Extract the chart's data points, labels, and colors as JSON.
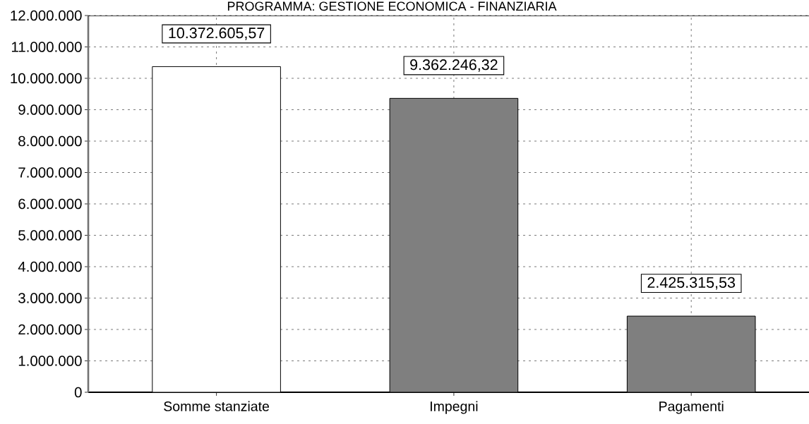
{
  "chart_data": {
    "type": "bar",
    "title": "PROGRAMMA: GESTIONE ECONOMICA - FINANZIARIA",
    "categories": [
      "Somme stanziate",
      "Impegni",
      "Pagamenti"
    ],
    "values": [
      10372605.57,
      9362246.32,
      2425315.53
    ],
    "colors": [
      "#ffffff",
      "#7f7f7f",
      "#7f7f7f"
    ],
    "value_labels": [
      "10.372.605,57",
      "9.362.246,32",
      "2.425.315,53"
    ],
    "ylim": [
      0,
      12000000
    ],
    "yticks": [
      0,
      {
        "value": 1000000,
        "label": "1.000.000"
      },
      {
        "value": 2000000,
        "label": "2.000.000"
      },
      {
        "value": 3000000,
        "label": "3.000.000"
      },
      {
        "value": 4000000,
        "label": "4.000.000"
      },
      {
        "value": 5000000,
        "label": "5.000.000"
      },
      {
        "value": 6000000,
        "label": "6.000.000"
      },
      {
        "value": 7000000,
        "label": "7.000.000"
      },
      {
        "value": 8000000,
        "label": "8.000.000"
      },
      {
        "value": 9000000,
        "label": "9.000.000"
      },
      {
        "value": 10000000,
        "label": "10.000.000"
      },
      {
        "value": 11000000,
        "label": "11.000.000"
      },
      {
        "value": 12000000,
        "label": "12.000.000"
      }
    ],
    "grid": true
  }
}
